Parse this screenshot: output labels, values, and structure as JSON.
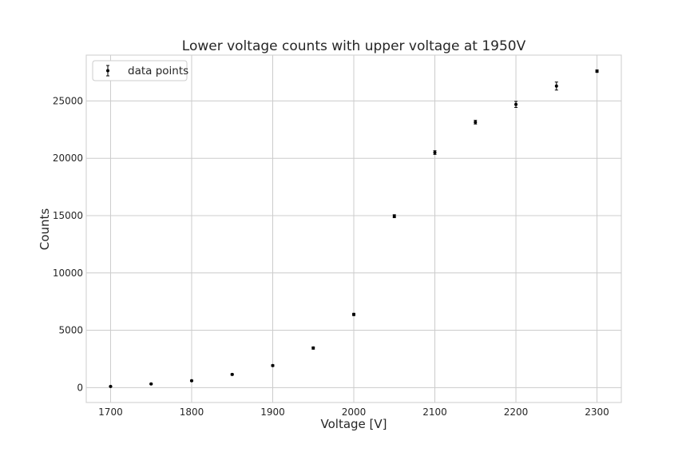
{
  "chart_data": {
    "type": "scatter",
    "title": "Lower voltage counts with upper voltage at 1950V",
    "xlabel": "Voltage [V]",
    "ylabel": "Counts",
    "xlim": [
      1670,
      2330
    ],
    "ylim": [
      -1300,
      29000
    ],
    "xticks": [
      1700,
      1800,
      1900,
      2000,
      2100,
      2200,
      2300
    ],
    "yticks": [
      0,
      5000,
      10000,
      15000,
      20000,
      25000
    ],
    "grid": true,
    "legend_position": "top-left",
    "series": [
      {
        "name": "data points",
        "marker_color": "#000000",
        "x": [
          1700,
          1750,
          1800,
          1850,
          1900,
          1950,
          2000,
          2050,
          2100,
          2150,
          2200,
          2250,
          2300
        ],
        "y": [
          100,
          320,
          600,
          1150,
          1920,
          3450,
          6380,
          14950,
          20500,
          23150,
          24700,
          26300,
          27600
        ],
        "yerr": [
          30,
          40,
          50,
          60,
          70,
          100,
          100,
          130,
          160,
          160,
          260,
          350,
          110
        ]
      }
    ]
  }
}
